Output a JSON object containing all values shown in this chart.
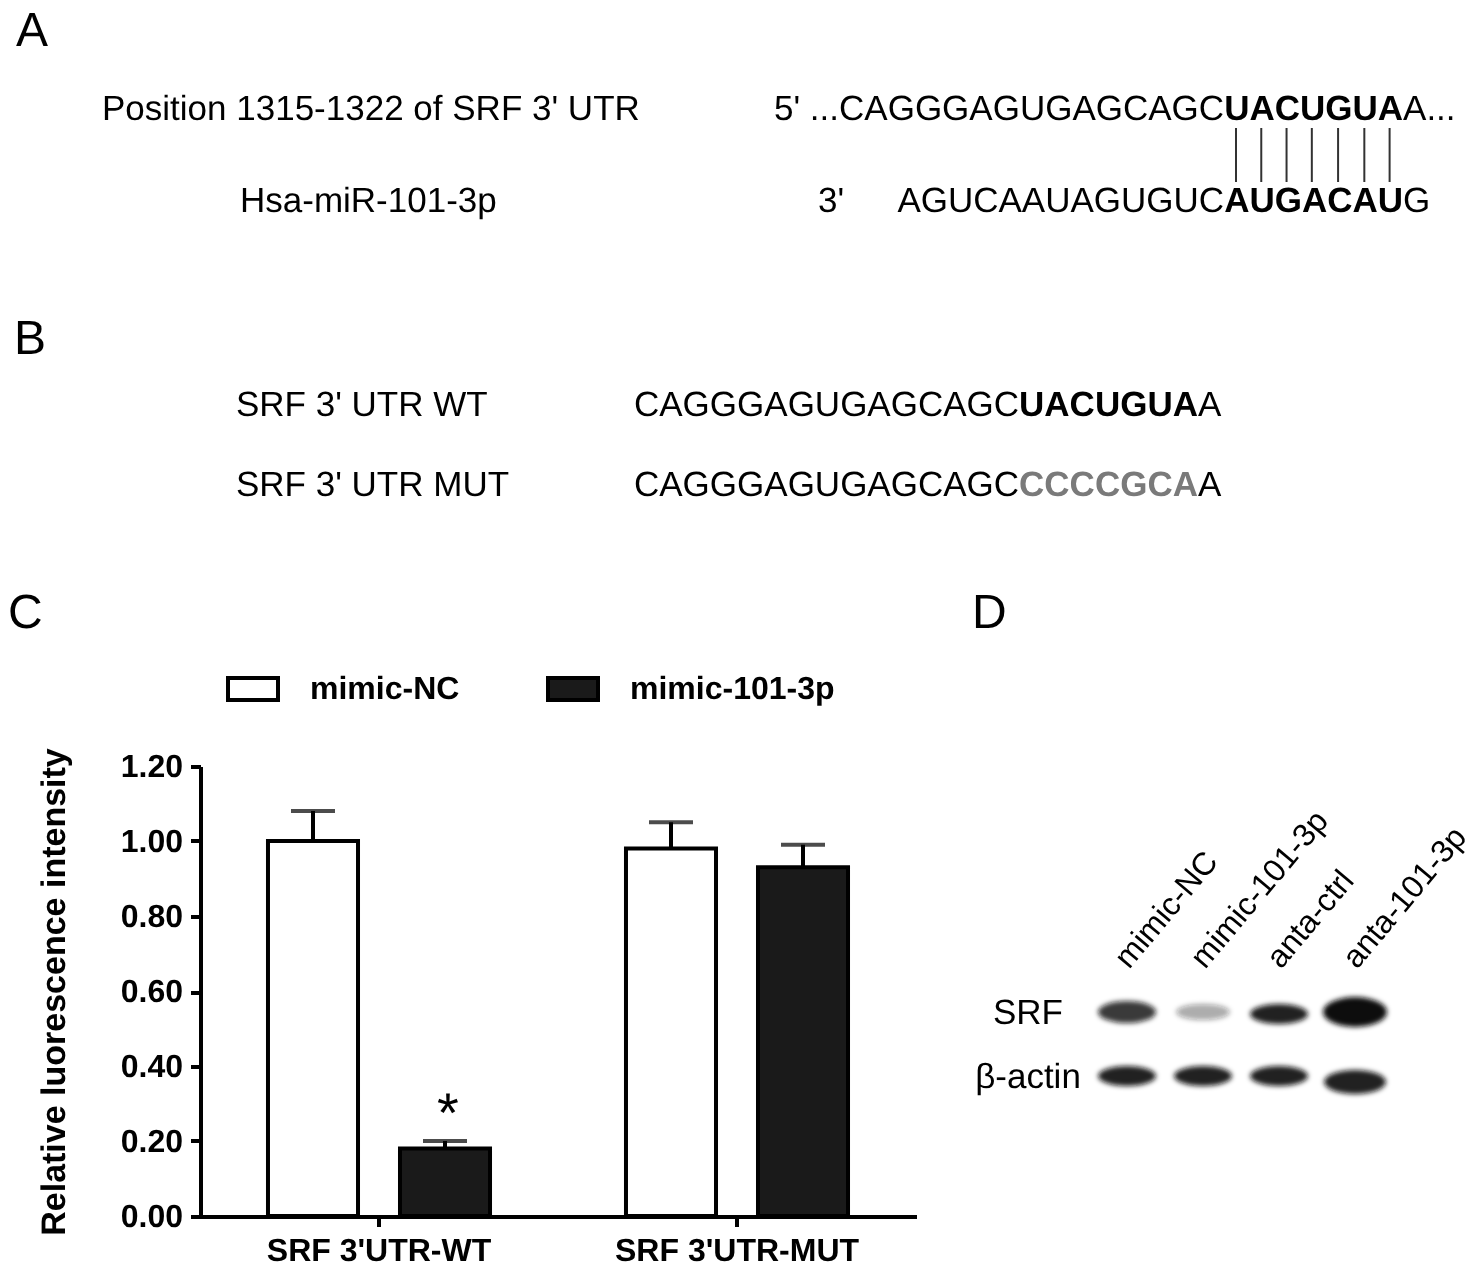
{
  "chart_data": [
    {
      "type": "other",
      "title": "A",
      "annotations": [
        "Position 1315-1322 of SRF 3' UTR",
        "Hsa-miR-101-3p",
        "5' ...CAGGGAGUGAGCAGC",
        "UACUGUA",
        "A...",
        "3'",
        "AGUCAAUAGUGUC",
        "AUGACAU",
        "G"
      ]
    },
    {
      "type": "other",
      "title": "B",
      "annotations": [
        "SRF 3' UTR WT",
        "SRF 3' UTR MUT",
        "CAGGGAGUGAGCAGC",
        "UACUGUA",
        "A",
        "CAGGGAGUGAGCAGC",
        "CCCCGCA",
        "A"
      ]
    },
    {
      "type": "bar",
      "title": "C",
      "ylabel": "Relative luorescence intensity",
      "categories": [
        "SRF 3'UTR-WT",
        "SRF 3'UTR-MUT"
      ],
      "series": [
        {
          "name": "mimic-NC",
          "color": "#ffffff",
          "values": [
            1.0,
            0.98
          ],
          "errors": [
            [
              1.0,
              1.08
            ],
            [
              0.98,
              1.05
            ]
          ]
        },
        {
          "name": "mimic-101-3p",
          "color": "#1a1a1a",
          "values": [
            0.18,
            0.93
          ],
          "errors": [
            [
              0.18,
              0.2
            ],
            [
              0.93,
              0.99
            ]
          ]
        }
      ],
      "ylim": [
        0,
        1.2
      ],
      "yticks": [
        {
          "value": 0,
          "label": "0.00"
        },
        {
          "value": 0.2,
          "label": "0.20"
        },
        {
          "value": 0.4,
          "label": "0.40"
        },
        {
          "value": 0.6,
          "label": "0.60"
        },
        {
          "value": 0.8,
          "label": "0.80"
        },
        {
          "value": 1,
          "label": "1.00"
        },
        {
          "value": 1.2,
          "label": "1.20"
        }
      ],
      "legend": "top",
      "annotations": [
        "*"
      ]
    },
    {
      "type": "other",
      "title": "D",
      "categories": [
        "mimic-NC",
        "mimic-101-3p",
        "anta-ctrl",
        "anta-101-3p"
      ],
      "y_categories": [
        "SRF",
        "β-actin"
      ]
    }
  ]
}
